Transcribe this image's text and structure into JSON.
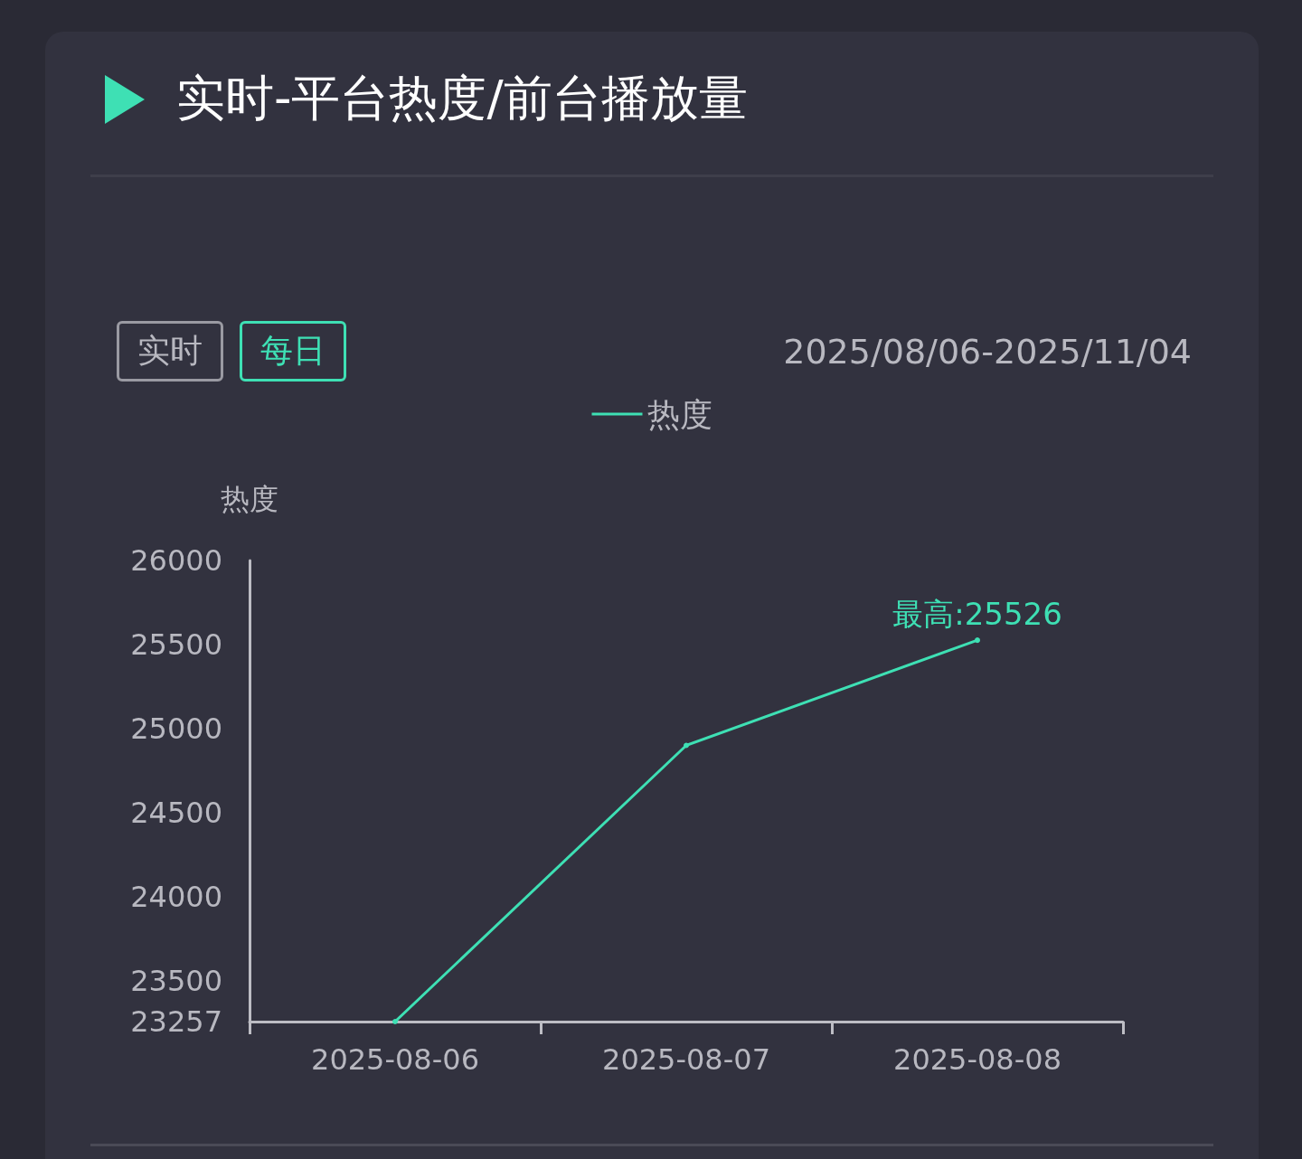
{
  "chart_data": {
    "type": "line",
    "title": "实时-平台热度/前台播放量",
    "ylabel": "热度",
    "annotations": [
      "实时",
      "每日",
      "2025/08/06-2025/11/04",
      {
        "text": "最高:25526",
        "x": "2025-08-08",
        "y": 25526
      }
    ],
    "categories": [
      "2025-08-06",
      "2025-08-07",
      "2025-08-08"
    ],
    "series": [
      {
        "name": "热度",
        "color": "#3ee0b4",
        "values": [
          23257,
          24900,
          25526
        ]
      }
    ],
    "ylim": [
      23257,
      26000
    ],
    "yticks": [
      23257,
      23500,
      24000,
      24500,
      25000,
      25500,
      26000
    ],
    "grid": false,
    "legend": "top",
    "marker": "circle",
    "line_style": "solid"
  }
}
